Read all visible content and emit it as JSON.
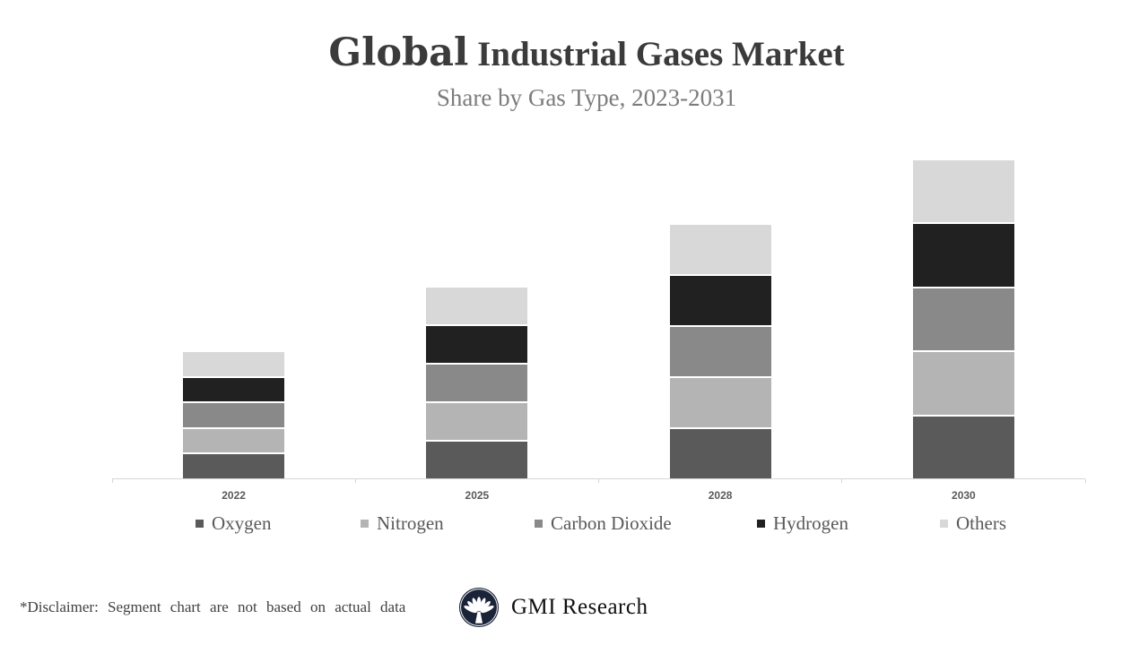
{
  "header": {
    "title_lead": "Global",
    "title_rest": " Industrial Gases Market",
    "subtitle": "Share by Gas Type, 2023-2031"
  },
  "chart_data": {
    "type": "bar",
    "stacked": true,
    "title": "Global Industrial Gases Market",
    "subtitle": "Share by Gas Type, 2023-2031",
    "categories": [
      "2022",
      "2025",
      "2028",
      "2030"
    ],
    "series": [
      {
        "name": "Oxygen",
        "color": "#5a5a5a",
        "values": [
          26.6,
          41,
          55,
          69.4
        ]
      },
      {
        "name": "Nitrogen",
        "color": "#b4b4b4",
        "values": [
          26.6,
          41,
          55,
          69.4
        ]
      },
      {
        "name": "Carbon Dioxide",
        "color": "#898989",
        "values": [
          26.6,
          41,
          55,
          69.4
        ]
      },
      {
        "name": "Hydrogen",
        "color": "#212121",
        "values": [
          26.6,
          41,
          55,
          69.4
        ]
      },
      {
        "name": "Others",
        "color": "#d8d8d8",
        "values": [
          26.6,
          41,
          55,
          69.4
        ]
      }
    ],
    "xlabel": "",
    "ylabel": "",
    "y_axis_visible": false,
    "grid": false,
    "legend_position": "bottom",
    "axis_color": "#d6d6d6",
    "tick_label_color": "#595959",
    "segment_gap_color": "#ffffff"
  },
  "footer": {
    "disclaimer": "*Disclaimer: Segment chart are not based on actual data",
    "brand_name": "GMI Research",
    "logo_icon": "fan-palmette-icon",
    "logo_color": "#1b2338"
  }
}
